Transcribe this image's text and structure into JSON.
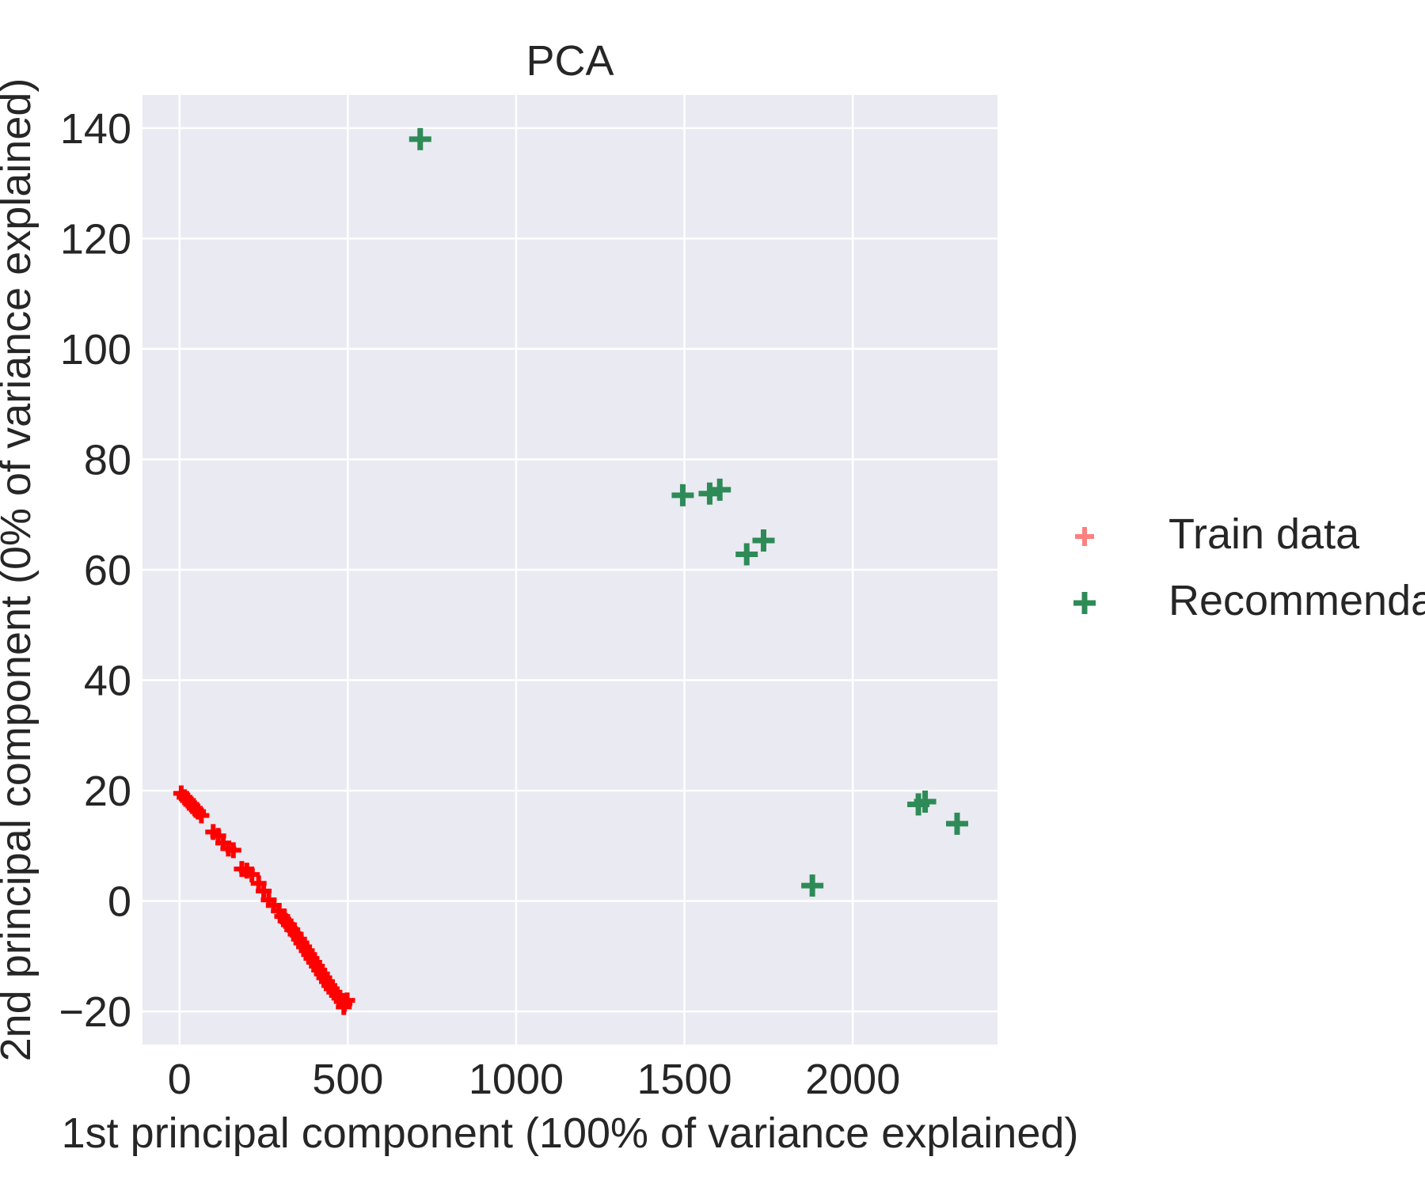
{
  "chart_data": {
    "type": "scatter",
    "title": "PCA",
    "xlabel": "1st principal component (100% of variance explained)",
    "ylabel": "2nd principal component (0% of variance explained)",
    "xlim": [
      -110,
      2430
    ],
    "ylim": [
      -26,
      146
    ],
    "xticks": [
      0,
      500,
      1000,
      1500,
      2000
    ],
    "yticks": [
      -20,
      0,
      20,
      40,
      60,
      80,
      100,
      120,
      140
    ],
    "grid": true,
    "legend_position": "right",
    "series": [
      {
        "name": "Train data",
        "color": "#ff0000",
        "legend_color": "#ff7f7f",
        "marker": "+",
        "points": [
          [
            5,
            19.5
          ],
          [
            15,
            18.8
          ],
          [
            25,
            18.2
          ],
          [
            35,
            17.5
          ],
          [
            45,
            16.8
          ],
          [
            55,
            16.2
          ],
          [
            65,
            15.5
          ],
          [
            100,
            12.5
          ],
          [
            115,
            11.8
          ],
          [
            130,
            10.5
          ],
          [
            145,
            9.5
          ],
          [
            160,
            9.2
          ],
          [
            185,
            5.8
          ],
          [
            200,
            5.5
          ],
          [
            215,
            4.8
          ],
          [
            235,
            3.2
          ],
          [
            250,
            1.8
          ],
          [
            265,
            0.2
          ],
          [
            280,
            -0.8
          ],
          [
            295,
            -1.8
          ],
          [
            305,
            -2.8
          ],
          [
            315,
            -3.6
          ],
          [
            325,
            -4.3
          ],
          [
            335,
            -5.2
          ],
          [
            345,
            -6.0
          ],
          [
            355,
            -6.9
          ],
          [
            362,
            -7.6
          ],
          [
            370,
            -8.3
          ],
          [
            378,
            -9.0
          ],
          [
            385,
            -9.7
          ],
          [
            392,
            -10.4
          ],
          [
            400,
            -11.1
          ],
          [
            408,
            -11.8
          ],
          [
            415,
            -12.5
          ],
          [
            423,
            -13.2
          ],
          [
            430,
            -13.9
          ],
          [
            438,
            -14.6
          ],
          [
            445,
            -15.3
          ],
          [
            452,
            -15.9
          ],
          [
            460,
            -16.5
          ],
          [
            468,
            -17.1
          ],
          [
            475,
            -17.6
          ],
          [
            482,
            -18.2
          ],
          [
            490,
            -18.6
          ],
          [
            498,
            -18.0
          ],
          [
            488,
            -19.2
          ]
        ]
      },
      {
        "name": "Recommendations",
        "color": "#2e8b57",
        "marker": "+",
        "points": [
          [
            715,
            138
          ],
          [
            1495,
            73.5
          ],
          [
            1575,
            73.8
          ],
          [
            1605,
            74.5
          ],
          [
            1685,
            62.8
          ],
          [
            1735,
            65.3
          ],
          [
            1880,
            2.8
          ],
          [
            2195,
            17.5
          ],
          [
            2215,
            18.0
          ],
          [
            2310,
            14.0
          ]
        ]
      }
    ]
  }
}
